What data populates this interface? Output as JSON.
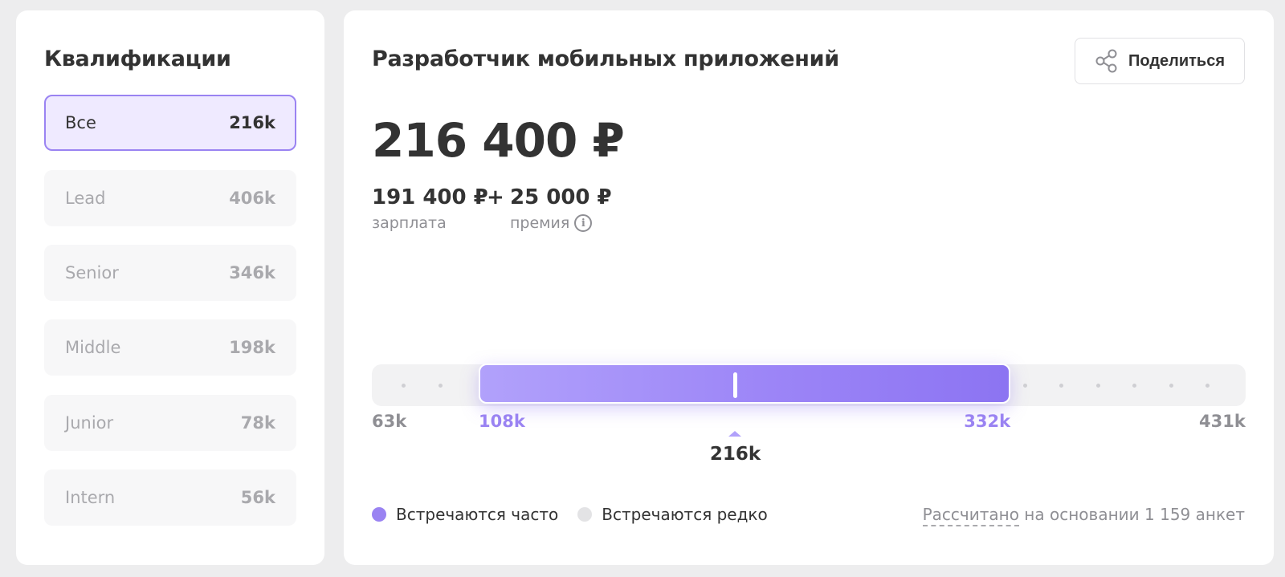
{
  "qualifications": {
    "title": "Квалификации",
    "items": [
      {
        "name": "Все",
        "value": "216k",
        "active": true
      },
      {
        "name": "Lead",
        "value": "406k",
        "active": false
      },
      {
        "name": "Senior",
        "value": "346k",
        "active": false
      },
      {
        "name": "Middle",
        "value": "198k",
        "active": false
      },
      {
        "name": "Junior",
        "value": "78k",
        "active": false
      },
      {
        "name": "Intern",
        "value": "56k",
        "active": false
      }
    ]
  },
  "main": {
    "job_title": "Разработчик мобильных приложений",
    "share_label": "Поделиться",
    "total": "216 400 ₽",
    "salary": {
      "value": "191 400 ₽",
      "label": "зарплата"
    },
    "plus": "+",
    "bonus": {
      "value": "25 000 ₽",
      "label": "премия"
    },
    "info_glyph": "i"
  },
  "range": {
    "min_value": 63,
    "min_label": "63k",
    "low_value": 108,
    "low_label": "108k",
    "median_value": 216,
    "median_label": "216k",
    "high_value": 332,
    "high_label": "332k",
    "max_value": 431,
    "max_label": "431k"
  },
  "legend": {
    "frequent": "Встречаются часто",
    "rare": "Встречаются редко",
    "frequent_color": "#9a83f2",
    "rare_color": "#e3e3e5"
  },
  "footnote": {
    "link": "Рассчитано",
    "rest": " на основании 1 159 анкет"
  },
  "icons": {
    "share": "share-icon",
    "info": "info-icon"
  }
}
